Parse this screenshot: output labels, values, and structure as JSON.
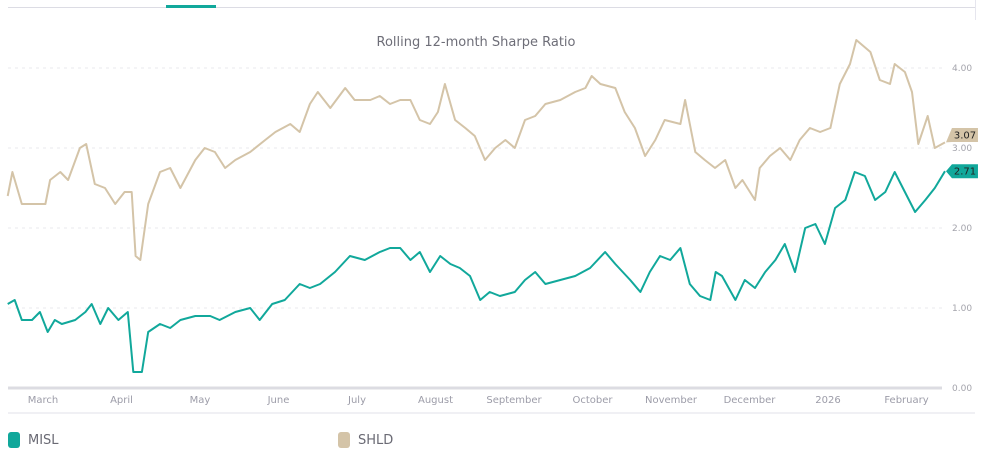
{
  "chart_data": {
    "type": "line",
    "title": "Rolling 12-month Sharpe Ratio",
    "xlabel": "",
    "ylabel": "",
    "x_unit": "months since March 1, 2025",
    "xlim": [
      -0.45,
      11.5
    ],
    "ylim": [
      0,
      4.5
    ],
    "grid": true,
    "legend_position": "bottom-left",
    "x_ticks": [
      {
        "x": 0,
        "label": "March"
      },
      {
        "x": 1,
        "label": "April"
      },
      {
        "x": 2,
        "label": "May"
      },
      {
        "x": 3,
        "label": "June"
      },
      {
        "x": 4,
        "label": "July"
      },
      {
        "x": 5,
        "label": "August"
      },
      {
        "x": 6,
        "label": "September"
      },
      {
        "x": 7,
        "label": "October"
      },
      {
        "x": 8,
        "label": "November"
      },
      {
        "x": 9,
        "label": "December"
      },
      {
        "x": 10,
        "label": "2026"
      },
      {
        "x": 11,
        "label": "February"
      }
    ],
    "y_ticks": [
      {
        "y": 0,
        "label": "0.00"
      },
      {
        "y": 1,
        "label": "1.00"
      },
      {
        "y": 2,
        "label": "2.00"
      },
      {
        "y": 3,
        "label": "3.00"
      },
      {
        "y": 4,
        "label": "4.00"
      }
    ],
    "series": [
      {
        "name": "MISL",
        "color": "#11a89b",
        "last_label": "2.71",
        "points": [
          [
            -0.45,
            1.05
          ],
          [
            -0.36,
            1.1
          ],
          [
            -0.27,
            0.85
          ],
          [
            -0.14,
            0.85
          ],
          [
            -0.04,
            0.95
          ],
          [
            0.06,
            0.7
          ],
          [
            0.15,
            0.85
          ],
          [
            0.24,
            0.8
          ],
          [
            0.41,
            0.85
          ],
          [
            0.54,
            0.95
          ],
          [
            0.62,
            1.05
          ],
          [
            0.73,
            0.8
          ],
          [
            0.83,
            1.0
          ],
          [
            0.96,
            0.85
          ],
          [
            1.08,
            0.95
          ],
          [
            1.15,
            0.2
          ],
          [
            1.26,
            0.2
          ],
          [
            1.34,
            0.7
          ],
          [
            1.49,
            0.8
          ],
          [
            1.62,
            0.75
          ],
          [
            1.75,
            0.85
          ],
          [
            1.94,
            0.9
          ],
          [
            2.13,
            0.9
          ],
          [
            2.25,
            0.85
          ],
          [
            2.45,
            0.95
          ],
          [
            2.64,
            1.0
          ],
          [
            2.76,
            0.85
          ],
          [
            2.92,
            1.05
          ],
          [
            3.08,
            1.1
          ],
          [
            3.27,
            1.3
          ],
          [
            3.4,
            1.25
          ],
          [
            3.53,
            1.3
          ],
          [
            3.72,
            1.45
          ],
          [
            3.91,
            1.65
          ],
          [
            4.1,
            1.6
          ],
          [
            4.29,
            1.7
          ],
          [
            4.42,
            1.75
          ],
          [
            4.55,
            1.75
          ],
          [
            4.68,
            1.6
          ],
          [
            4.8,
            1.7
          ],
          [
            4.93,
            1.45
          ],
          [
            5.06,
            1.65
          ],
          [
            5.19,
            1.55
          ],
          [
            5.31,
            1.5
          ],
          [
            5.44,
            1.4
          ],
          [
            5.57,
            1.1
          ],
          [
            5.69,
            1.2
          ],
          [
            5.82,
            1.15
          ],
          [
            6.01,
            1.2
          ],
          [
            6.14,
            1.35
          ],
          [
            6.27,
            1.45
          ],
          [
            6.4,
            1.3
          ],
          [
            6.59,
            1.35
          ],
          [
            6.78,
            1.4
          ],
          [
            6.97,
            1.5
          ],
          [
            7.16,
            1.7
          ],
          [
            7.29,
            1.55
          ],
          [
            7.48,
            1.35
          ],
          [
            7.61,
            1.2
          ],
          [
            7.73,
            1.45
          ],
          [
            7.86,
            1.65
          ],
          [
            7.99,
            1.6
          ],
          [
            8.12,
            1.75
          ],
          [
            8.24,
            1.3
          ],
          [
            8.37,
            1.15
          ],
          [
            8.5,
            1.1
          ],
          [
            8.57,
            1.45
          ],
          [
            8.65,
            1.4
          ],
          [
            8.82,
            1.1
          ],
          [
            8.94,
            1.35
          ],
          [
            9.07,
            1.25
          ],
          [
            9.2,
            1.45
          ],
          [
            9.33,
            1.6
          ],
          [
            9.45,
            1.8
          ],
          [
            9.58,
            1.45
          ],
          [
            9.71,
            2.0
          ],
          [
            9.84,
            2.05
          ],
          [
            9.96,
            1.8
          ],
          [
            10.09,
            2.25
          ],
          [
            10.22,
            2.35
          ],
          [
            10.34,
            2.7
          ],
          [
            10.47,
            2.65
          ],
          [
            10.6,
            2.35
          ],
          [
            10.73,
            2.45
          ],
          [
            10.85,
            2.7
          ],
          [
            10.98,
            2.45
          ],
          [
            11.11,
            2.2
          ],
          [
            11.24,
            2.35
          ],
          [
            11.36,
            2.5
          ],
          [
            11.49,
            2.71
          ]
        ]
      },
      {
        "name": "SHLD",
        "color": "#d4c4a8",
        "last_label": "3.07",
        "points": [
          [
            -0.45,
            2.4
          ],
          [
            -0.39,
            2.7
          ],
          [
            -0.27,
            2.3
          ],
          [
            -0.1,
            2.3
          ],
          [
            0.03,
            2.3
          ],
          [
            0.09,
            2.6
          ],
          [
            0.22,
            2.7
          ],
          [
            0.32,
            2.6
          ],
          [
            0.47,
            3.0
          ],
          [
            0.55,
            3.05
          ],
          [
            0.66,
            2.55
          ],
          [
            0.79,
            2.5
          ],
          [
            0.92,
            2.3
          ],
          [
            1.04,
            2.45
          ],
          [
            1.13,
            2.45
          ],
          [
            1.18,
            1.65
          ],
          [
            1.24,
            1.6
          ],
          [
            1.34,
            2.3
          ],
          [
            1.49,
            2.7
          ],
          [
            1.62,
            2.75
          ],
          [
            1.75,
            2.5
          ],
          [
            1.94,
            2.85
          ],
          [
            2.06,
            3.0
          ],
          [
            2.19,
            2.95
          ],
          [
            2.32,
            2.75
          ],
          [
            2.45,
            2.85
          ],
          [
            2.64,
            2.95
          ],
          [
            2.83,
            3.1
          ],
          [
            2.96,
            3.2
          ],
          [
            3.15,
            3.3
          ],
          [
            3.27,
            3.2
          ],
          [
            3.4,
            3.55
          ],
          [
            3.5,
            3.7
          ],
          [
            3.66,
            3.5
          ],
          [
            3.85,
            3.75
          ],
          [
            3.97,
            3.6
          ],
          [
            4.17,
            3.6
          ],
          [
            4.29,
            3.65
          ],
          [
            4.42,
            3.55
          ],
          [
            4.55,
            3.6
          ],
          [
            4.68,
            3.6
          ],
          [
            4.8,
            3.35
          ],
          [
            4.93,
            3.3
          ],
          [
            5.03,
            3.45
          ],
          [
            5.12,
            3.8
          ],
          [
            5.25,
            3.35
          ],
          [
            5.38,
            3.25
          ],
          [
            5.5,
            3.15
          ],
          [
            5.63,
            2.85
          ],
          [
            5.76,
            3.0
          ],
          [
            5.89,
            3.1
          ],
          [
            6.01,
            3.0
          ],
          [
            6.14,
            3.35
          ],
          [
            6.27,
            3.4
          ],
          [
            6.4,
            3.55
          ],
          [
            6.59,
            3.6
          ],
          [
            6.78,
            3.7
          ],
          [
            6.91,
            3.75
          ],
          [
            6.99,
            3.9
          ],
          [
            7.1,
            3.8
          ],
          [
            7.29,
            3.75
          ],
          [
            7.41,
            3.45
          ],
          [
            7.54,
            3.25
          ],
          [
            7.67,
            2.9
          ],
          [
            7.8,
            3.1
          ],
          [
            7.92,
            3.35
          ],
          [
            8.12,
            3.3
          ],
          [
            8.18,
            3.6
          ],
          [
            8.31,
            2.95
          ],
          [
            8.43,
            2.85
          ],
          [
            8.56,
            2.75
          ],
          [
            8.69,
            2.85
          ],
          [
            8.82,
            2.5
          ],
          [
            8.91,
            2.6
          ],
          [
            9.07,
            2.35
          ],
          [
            9.13,
            2.75
          ],
          [
            9.26,
            2.9
          ],
          [
            9.39,
            3.0
          ],
          [
            9.52,
            2.85
          ],
          [
            9.64,
            3.1
          ],
          [
            9.77,
            3.25
          ],
          [
            9.9,
            3.2
          ],
          [
            10.03,
            3.25
          ],
          [
            10.15,
            3.8
          ],
          [
            10.28,
            4.05
          ],
          [
            10.36,
            4.35
          ],
          [
            10.54,
            4.2
          ],
          [
            10.66,
            3.85
          ],
          [
            10.79,
            3.8
          ],
          [
            10.85,
            4.05
          ],
          [
            10.98,
            3.95
          ],
          [
            11.07,
            3.7
          ],
          [
            11.15,
            3.05
          ],
          [
            11.27,
            3.4
          ],
          [
            11.36,
            3.0
          ],
          [
            11.49,
            3.07
          ]
        ]
      }
    ]
  }
}
